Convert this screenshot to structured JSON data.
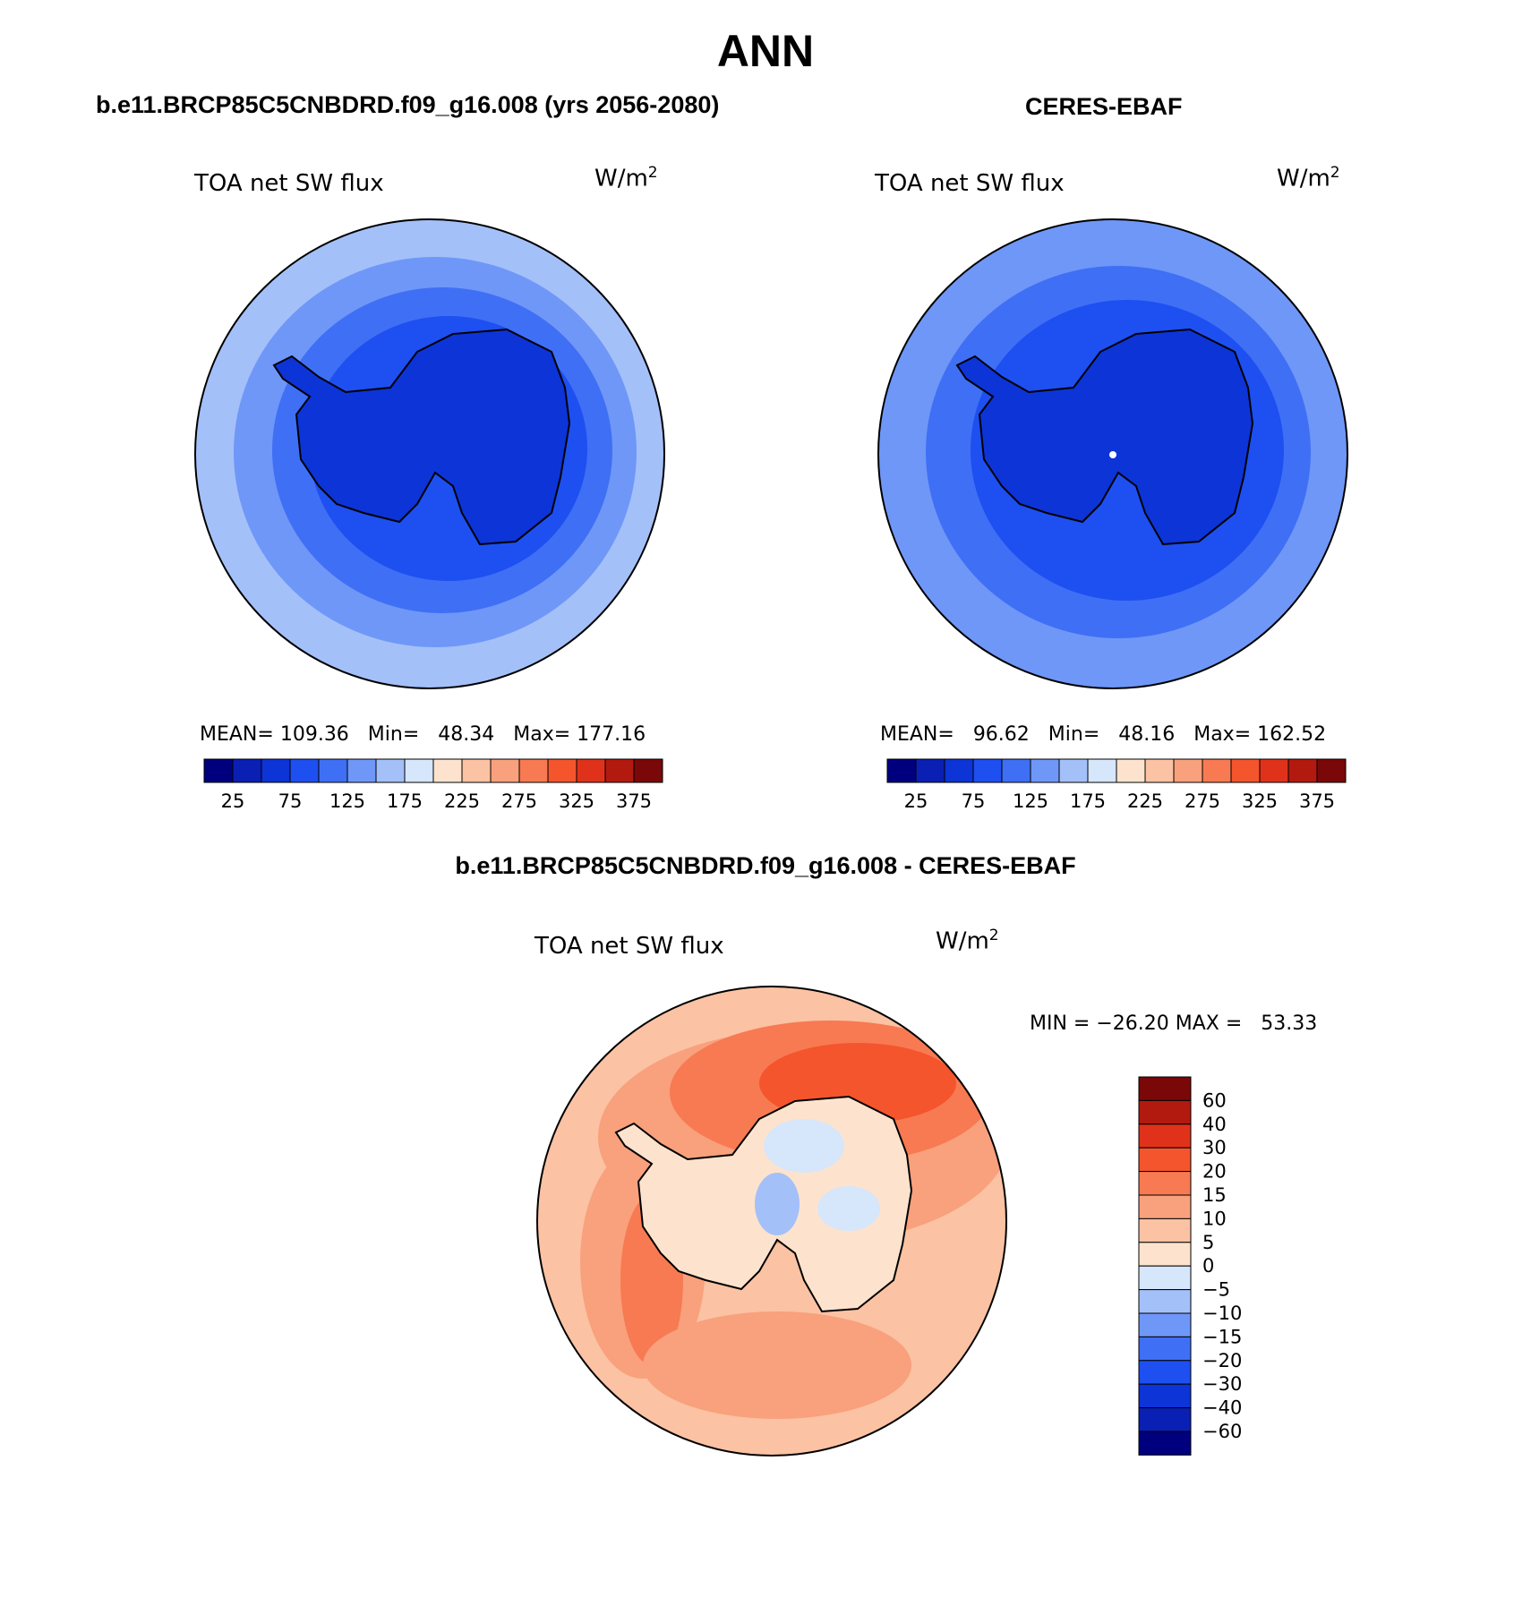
{
  "figure": {
    "title": "ANN",
    "panels": [
      {
        "case_title": "b.e11.BRCP85C5CNBDRD.f09_g16.008 (yrs 2056-2080)",
        "variable": "TOA net SW flux",
        "units": "W/m",
        "units_exp": "2",
        "stats": {
          "mean_label": "MEAN=",
          "mean": "109.36",
          "min_label": "Min=",
          "min": "48.34",
          "max_label": "Max=",
          "max": "177.16"
        }
      },
      {
        "case_title": "CERES-EBAF",
        "variable": "TOA net SW flux",
        "units": "W/m",
        "units_exp": "2",
        "stats": {
          "mean_label": "MEAN=",
          "mean": "96.62",
          "min_label": "Min=",
          "min": "48.16",
          "max_label": "Max=",
          "max": "162.52"
        }
      },
      {
        "case_title": "b.e11.BRCP85C5CNBDRD.f09_g16.008 - CERES-EBAF",
        "variable": "TOA net SW flux",
        "units": "W/m",
        "units_exp": "2",
        "stats_line": "MIN = −26.20 MAX =   53.33"
      }
    ],
    "abs_colorbar": {
      "colors": [
        "#00007f",
        "#0a1fb3",
        "#0d34d6",
        "#1e4ff0",
        "#3f6ff5",
        "#6f97f7",
        "#a4c0f9",
        "#d6e6fb",
        "#fde3cd",
        "#fbc2a3",
        "#f9a07c",
        "#f77a52",
        "#f4552c",
        "#e0321b",
        "#b31a0f",
        "#7a0808"
      ],
      "tick_labels": [
        "25",
        "75",
        "125",
        "175",
        "225",
        "275",
        "325",
        "375"
      ]
    },
    "diff_colorbar": {
      "colors": [
        "#7a0808",
        "#b31a0f",
        "#e0321b",
        "#f4552c",
        "#f77a52",
        "#f9a07c",
        "#fbc2a3",
        "#fde3cd",
        "#d6e6fb",
        "#a4c0f9",
        "#6f97f7",
        "#3f6ff5",
        "#1e4ff0",
        "#0d34d6",
        "#0a1fb3",
        "#00007f"
      ],
      "tick_labels": [
        "60",
        "40",
        "30",
        "20",
        "15",
        "10",
        "5",
        "0",
        "−5",
        "−10",
        "−15",
        "−20",
        "−30",
        "−40",
        "−60"
      ]
    }
  }
}
